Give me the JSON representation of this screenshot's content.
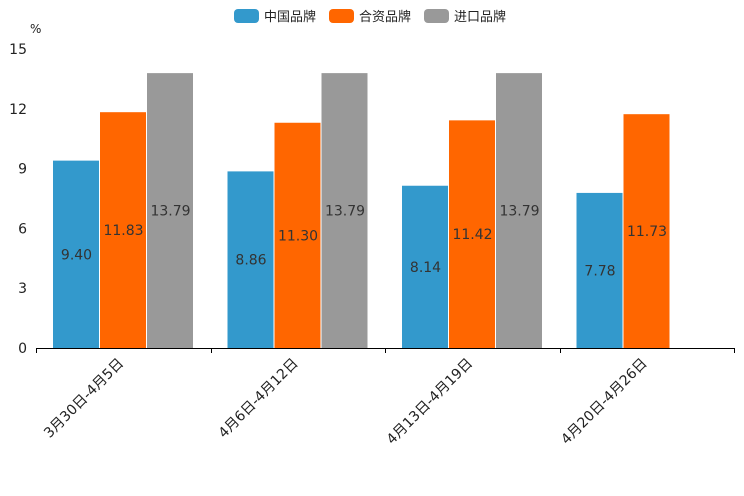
{
  "chart_data": {
    "type": "bar",
    "title": "",
    "unit_label": "%",
    "xlabel": "",
    "ylabel": "%",
    "ylim": [
      0,
      15
    ],
    "yticks": [
      0,
      3,
      6,
      9,
      12,
      15
    ],
    "categories": [
      "3月30日-4月5日",
      "4月6日-4月12日",
      "4月13日-4月19日",
      "4月20日-4月26日"
    ],
    "series": [
      {
        "name": "中国品牌",
        "color": "#3399cc",
        "values": [
          9.4,
          8.86,
          8.14,
          7.78
        ],
        "labels": [
          "9.40",
          "8.86",
          "8.14",
          "7.78"
        ]
      },
      {
        "name": "合资品牌",
        "color": "#ff6600",
        "values": [
          11.83,
          11.3,
          11.42,
          11.73
        ],
        "labels": [
          "11.83",
          "11.30",
          "11.42",
          "11.73"
        ]
      },
      {
        "name": "进口品牌",
        "color": "#999999",
        "values": [
          13.79,
          13.79,
          13.79,
          null
        ],
        "labels": [
          "13.79",
          "13.79",
          "13.79",
          ""
        ]
      }
    ],
    "legend_position": "top-center",
    "grid": false
  }
}
